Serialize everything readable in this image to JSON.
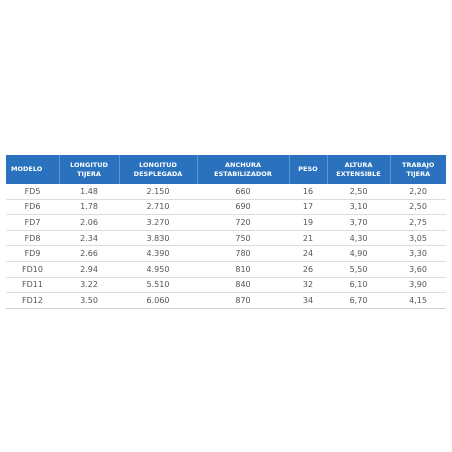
{
  "table": {
    "headers": [
      [
        "MODELO"
      ],
      [
        "LONGITUD",
        "TIJERA"
      ],
      [
        "LONGITUD",
        "DESPLEGADA"
      ],
      [
        "ANCHURA",
        "ESTABILIZADOR"
      ],
      [
        "PESO"
      ],
      [
        "ALTURA",
        "EXTENSIBLE"
      ],
      [
        "TRABAJO",
        "TIJERA"
      ]
    ],
    "rows": [
      [
        "FD5",
        "1.48",
        "2.150",
        "660",
        "16",
        "2,50",
        "2,20"
      ],
      [
        "FD6",
        "1.78",
        "2.710",
        "690",
        "17",
        "3,10",
        "2,50"
      ],
      [
        "FD7",
        "2.06",
        "3.270",
        "720",
        "19",
        "3,70",
        "2,75"
      ],
      [
        "FD8",
        "2.34",
        "3.830",
        "750",
        "21",
        "4,30",
        "3,05"
      ],
      [
        "FD9",
        "2.66",
        "4.390",
        "780",
        "24",
        "4,90",
        "3,30"
      ],
      [
        "FD10",
        "2.94",
        "4.950",
        "810",
        "26",
        "5,50",
        "3,60"
      ],
      [
        "FD11",
        "3.22",
        "5.510",
        "840",
        "32",
        "6,10",
        "3,90"
      ],
      [
        "FD12",
        "3.50",
        "6.060",
        "870",
        "34",
        "6,70",
        "4,15"
      ]
    ]
  },
  "colors": {
    "header_background": "#2a72bd",
    "header_text": "#ffffff",
    "cell_text": "#555555",
    "row_divider": "#dddddd"
  }
}
